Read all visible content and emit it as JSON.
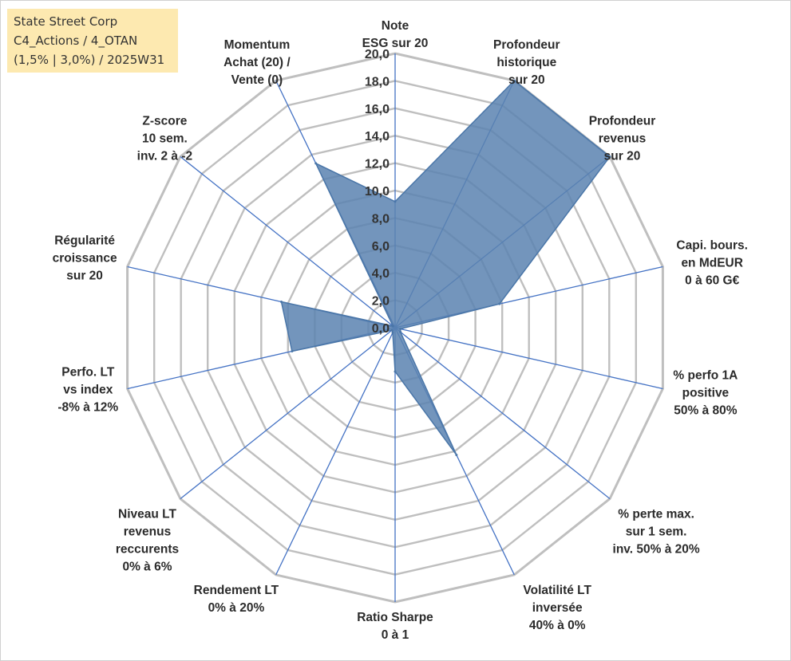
{
  "info": {
    "line1": "State Street Corp",
    "line2": "C4_Actions / 4_OTAN",
    "line3": "(1,5% | 3,0%) / 2025W31"
  },
  "chart_data": {
    "type": "radar",
    "rmin": 0,
    "rmax": 20,
    "tick_step": 2,
    "ticks": [
      "0,0",
      "2,0",
      "4,0",
      "6,0",
      "8,0",
      "10,0",
      "12,0",
      "14,0",
      "16,0",
      "18,0",
      "20,0"
    ],
    "grid": true,
    "axes": [
      {
        "lines": [
          "Note",
          "ESG sur 20"
        ],
        "value": 9.2
      },
      {
        "lines": [
          "Profondeur",
          "historique",
          "sur 20"
        ],
        "value": 20.0
      },
      {
        "lines": [
          "Profondeur",
          "revenus",
          "sur 20"
        ],
        "value": 20.0
      },
      {
        "lines": [
          "Capi. bours.",
          "en MdEUR",
          "0 à 60 G€"
        ],
        "value": 7.8
      },
      {
        "lines": [
          "% perfo 1A",
          "positive",
          "50% à 80%"
        ],
        "value": 0.4
      },
      {
        "lines": [
          "% perte max.",
          "sur 1 sem.",
          "inv. 50% à 20%"
        ],
        "value": 0.5
      },
      {
        "lines": [
          "Volatilité LT",
          "inversée",
          "40% à 0%"
        ],
        "value": 10.3
      },
      {
        "lines": [
          "Ratio Sharpe",
          "0 à 1"
        ],
        "value": 3.2
      },
      {
        "lines": [
          "Rendement LT",
          "0% à 20%"
        ],
        "value": 0.4
      },
      {
        "lines": [
          "Niveau LT",
          "revenus",
          "reccurents",
          "0% à 6%"
        ],
        "value": 0.3
      },
      {
        "lines": [
          "Perfo. LT",
          "vs index",
          "-8% à 12%"
        ],
        "value": 7.7
      },
      {
        "lines": [
          "Régularité",
          "croissance",
          "sur 20"
        ],
        "value": 8.5
      },
      {
        "lines": [
          "Z-score",
          "10 sem.",
          "inv. 2 à -2"
        ],
        "value": 0.2
      },
      {
        "lines": [
          "Momentum",
          "Achat (20) /",
          "Vente (0)"
        ],
        "value": 13.3
      }
    ],
    "colors": {
      "fill": "#5b82b0",
      "stroke": "#4a76a8",
      "grid": "#bfbfbf",
      "spoke": "#4472c4"
    }
  }
}
